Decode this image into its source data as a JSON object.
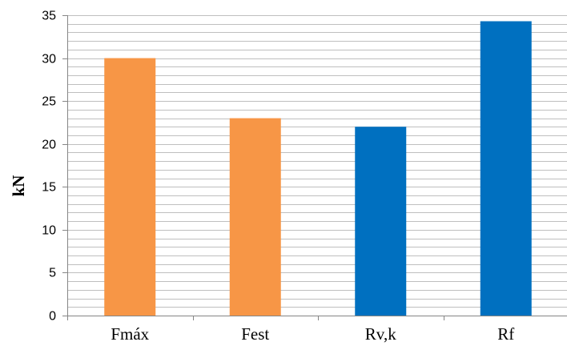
{
  "chart_data": {
    "type": "bar",
    "title": "",
    "xlabel": "",
    "ylabel": "kN",
    "ylim": [
      0,
      35
    ],
    "major_ticks": [
      0,
      5,
      10,
      15,
      20,
      25,
      30,
      35
    ],
    "minor_grid_step": 1,
    "grid": true,
    "categories": [
      "Fmáx",
      "Fest",
      "Rv,k",
      "Rf"
    ],
    "values": [
      30.0,
      23.0,
      22.0,
      34.3
    ],
    "colors": [
      "#F79646",
      "#F79646",
      "#0070C0",
      "#0070C0"
    ],
    "grid_color": "#bfbfbf",
    "axis_color": "#868686"
  }
}
